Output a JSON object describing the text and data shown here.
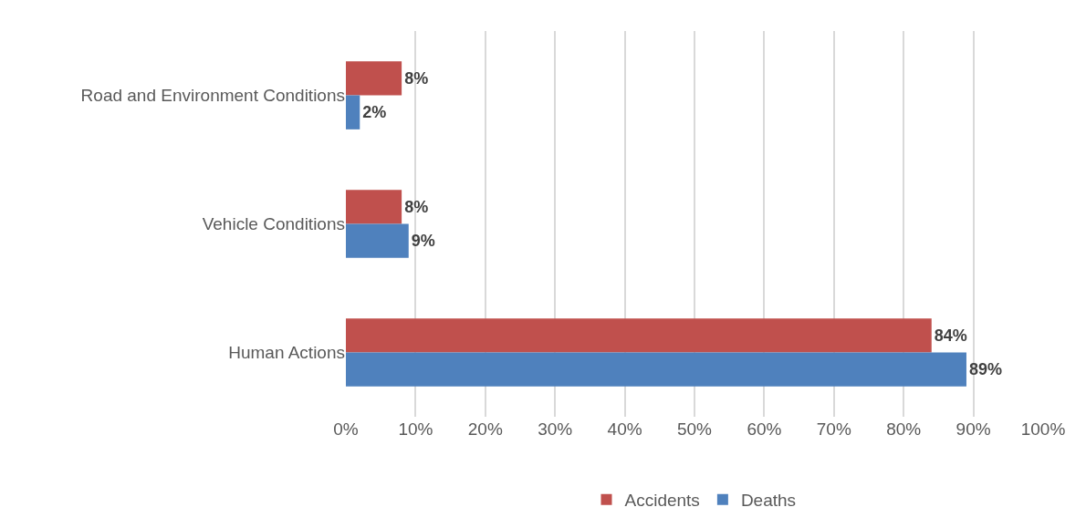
{
  "chart_data": {
    "type": "bar",
    "orientation": "horizontal",
    "categories": [
      "Road and Environment Conditions",
      "Vehicle Conditions",
      "Human Actions"
    ],
    "series": [
      {
        "name": "Accidents",
        "color": "#c0504d",
        "values": [
          8,
          8,
          84
        ],
        "value_labels": [
          "8%",
          "8%",
          "84%"
        ]
      },
      {
        "name": "Deaths",
        "color": "#4f81bd",
        "values": [
          2,
          9,
          89
        ],
        "value_labels": [
          "2%",
          "9%",
          "89%"
        ]
      }
    ],
    "xlim": [
      0,
      100
    ],
    "xticks": [
      {
        "value": 0,
        "label": "0%"
      },
      {
        "value": 10,
        "label": "10%"
      },
      {
        "value": 20,
        "label": "20%"
      },
      {
        "value": 30,
        "label": "30%"
      },
      {
        "value": 40,
        "label": "40%"
      },
      {
        "value": 50,
        "label": "50%"
      },
      {
        "value": 60,
        "label": "60%"
      },
      {
        "value": 70,
        "label": "70%"
      },
      {
        "value": 80,
        "label": "80%"
      },
      {
        "value": 90,
        "label": "90%"
      },
      {
        "value": 100,
        "label": "100%"
      }
    ],
    "grid": "x",
    "legend": "bottom"
  }
}
